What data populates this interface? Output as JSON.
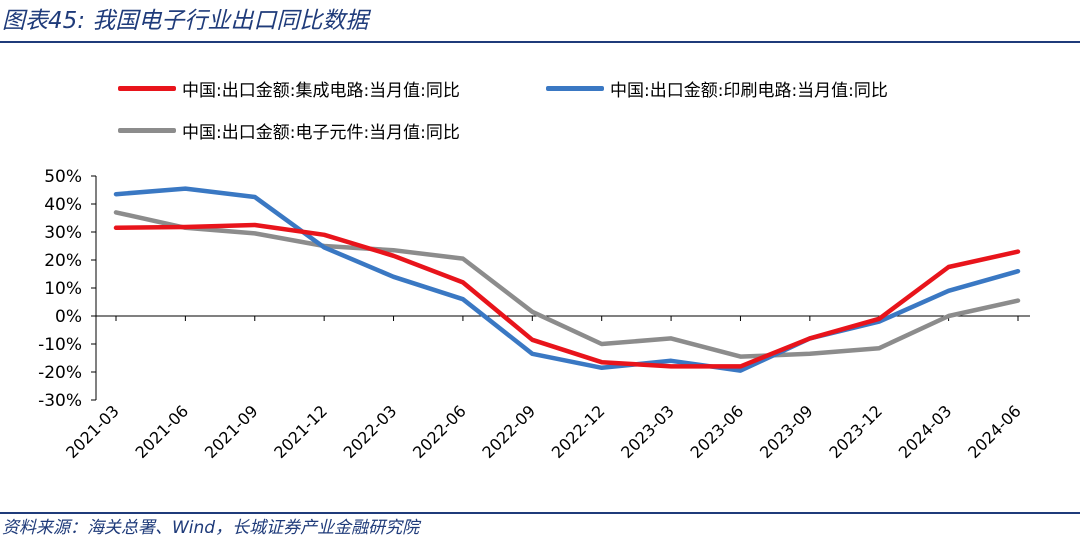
{
  "header": {
    "title": "图表45:  我国电子行业出口同比数据"
  },
  "footer": {
    "source": "资料来源：海关总署、Wind，长城证券产业金融研究院"
  },
  "chart_data": {
    "type": "line",
    "x": [
      "2021-03",
      "2021-06",
      "2021-09",
      "2021-12",
      "2022-03",
      "2022-06",
      "2022-09",
      "2022-12",
      "2023-03",
      "2023-06",
      "2023-09",
      "2023-12",
      "2024-03",
      "2024-06"
    ],
    "series": [
      {
        "name": "中国:出口金额:集成电路:当月值:同比",
        "color": "#e8141b",
        "values": [
          31.5,
          31.8,
          32.5,
          29,
          21.5,
          12,
          -8.5,
          -16.5,
          -18,
          -18,
          -8,
          -1,
          17.5,
          23
        ]
      },
      {
        "name": "中国:出口金额:印刷电路:当月值:同比",
        "color": "#3a78c3",
        "values": [
          43.5,
          45.5,
          42.5,
          24.5,
          14,
          6,
          -13.5,
          -18.5,
          -16,
          -19.5,
          -8,
          -2,
          9,
          16
        ]
      },
      {
        "name": "中国:出口金额:电子元件:当月值:同比",
        "color": "#8c8c8c",
        "values": [
          37,
          31.5,
          29.5,
          25,
          23.5,
          20.5,
          1.5,
          -10,
          -8,
          -14.5,
          -13.5,
          -11.5,
          0,
          5.5
        ]
      }
    ],
    "yticks": [
      "50%",
      "40%",
      "30%",
      "20%",
      "10%",
      "0%",
      "-10%",
      "-20%",
      "-30%"
    ],
    "ylim": [
      -30,
      50
    ],
    "grid": false,
    "legend": "top"
  }
}
